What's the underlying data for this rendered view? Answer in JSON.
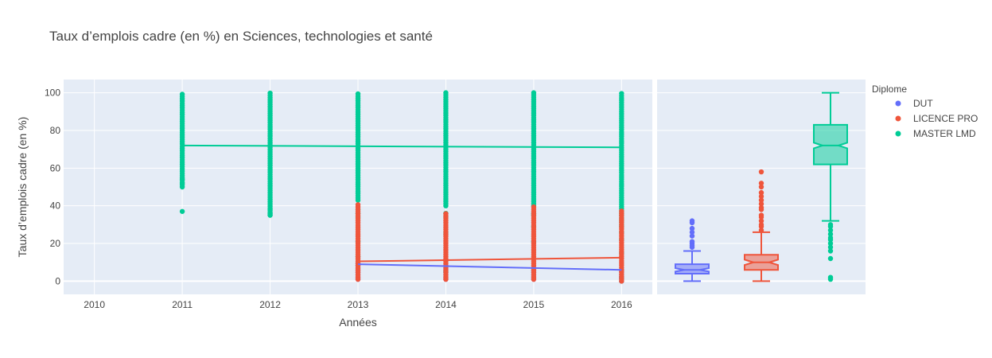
{
  "chart_data": {
    "type": "scatter",
    "title": "Taux d’emplois cadre (en %) en Sciences, technologies et santé",
    "xlabel": "Années",
    "ylabel": "Taux d’emplois cadre (en %)",
    "x_ticks": [
      "2010",
      "2011",
      "2012",
      "2013",
      "2014",
      "2015",
      "2016"
    ],
    "y_ticks": [
      "0",
      "20",
      "40",
      "60",
      "80",
      "100"
    ],
    "xlim": [
      2009.65,
      2016.35
    ],
    "ylim": [
      -7,
      107
    ],
    "grid": true,
    "legend_title": "Diplome",
    "legend_position": "right",
    "series": [
      {
        "name": "DUT",
        "color": "#636efa",
        "point_ranges": [
          {
            "x": 2013,
            "min": 1,
            "max": 10
          },
          {
            "x": 2014,
            "min": 1,
            "max": 8
          },
          {
            "x": 2015,
            "min": 1,
            "max": 7
          },
          {
            "x": 2016,
            "min": 0,
            "max": 6
          }
        ],
        "trend": [
          {
            "x": 2013,
            "y": 9
          },
          {
            "x": 2016,
            "y": 6
          }
        ],
        "box": {
          "min": 0,
          "q1": 4,
          "median": 6,
          "q3": 9,
          "max": 16,
          "outliers": [
            18,
            19,
            20,
            21,
            24,
            26,
            28,
            31,
            32
          ]
        }
      },
      {
        "name": "LICENCE PRO",
        "color": "#ef553b",
        "point_ranges": [
          {
            "x": 2013,
            "min": 1,
            "max": 41
          },
          {
            "x": 2014,
            "min": 1,
            "max": 36
          },
          {
            "x": 2015,
            "min": 1,
            "max": 40
          },
          {
            "x": 2016,
            "min": 0,
            "max": 38
          }
        ],
        "trend": [
          {
            "x": 2013,
            "y": 10.5
          },
          {
            "x": 2016,
            "y": 12.5
          }
        ],
        "box": {
          "min": 0,
          "q1": 6,
          "median": 10,
          "q3": 14,
          "max": 26,
          "outliers": [
            27,
            29,
            30,
            32,
            34,
            35,
            38,
            39,
            41,
            43,
            45,
            47,
            50,
            52,
            58
          ]
        }
      },
      {
        "name": "MASTER LMD",
        "color": "#00cc96",
        "point_ranges": [
          {
            "x": 2011,
            "min": 50,
            "max": 100,
            "extra": [
              37,
              52,
              54
            ]
          },
          {
            "x": 2012,
            "min": 35,
            "max": 100,
            "extra": [
              35,
              36,
              38
            ]
          },
          {
            "x": 2013,
            "min": 43,
            "max": 100,
            "extra": [
              34,
              36,
              38,
              13,
              21
            ]
          },
          {
            "x": 2014,
            "min": 40,
            "max": 100,
            "extra": [
              25,
              34,
              36,
              26,
              5
            ]
          },
          {
            "x": 2015,
            "min": 40,
            "max": 100,
            "extra": [
              21,
              35,
              36,
              29
            ]
          },
          {
            "x": 2016,
            "min": 30,
            "max": 100,
            "extra": [
              0,
              2,
              15,
              22,
              26,
              29
            ]
          }
        ],
        "trend": [
          {
            "x": 2011,
            "y": 72
          },
          {
            "x": 2016,
            "y": 71
          }
        ],
        "box": {
          "min": 32,
          "q1": 62,
          "median": 72,
          "q3": 83,
          "max": 100,
          "outliers": [
            1,
            2,
            12,
            16,
            18,
            20,
            22,
            23,
            25,
            27,
            29,
            30
          ]
        }
      }
    ]
  }
}
